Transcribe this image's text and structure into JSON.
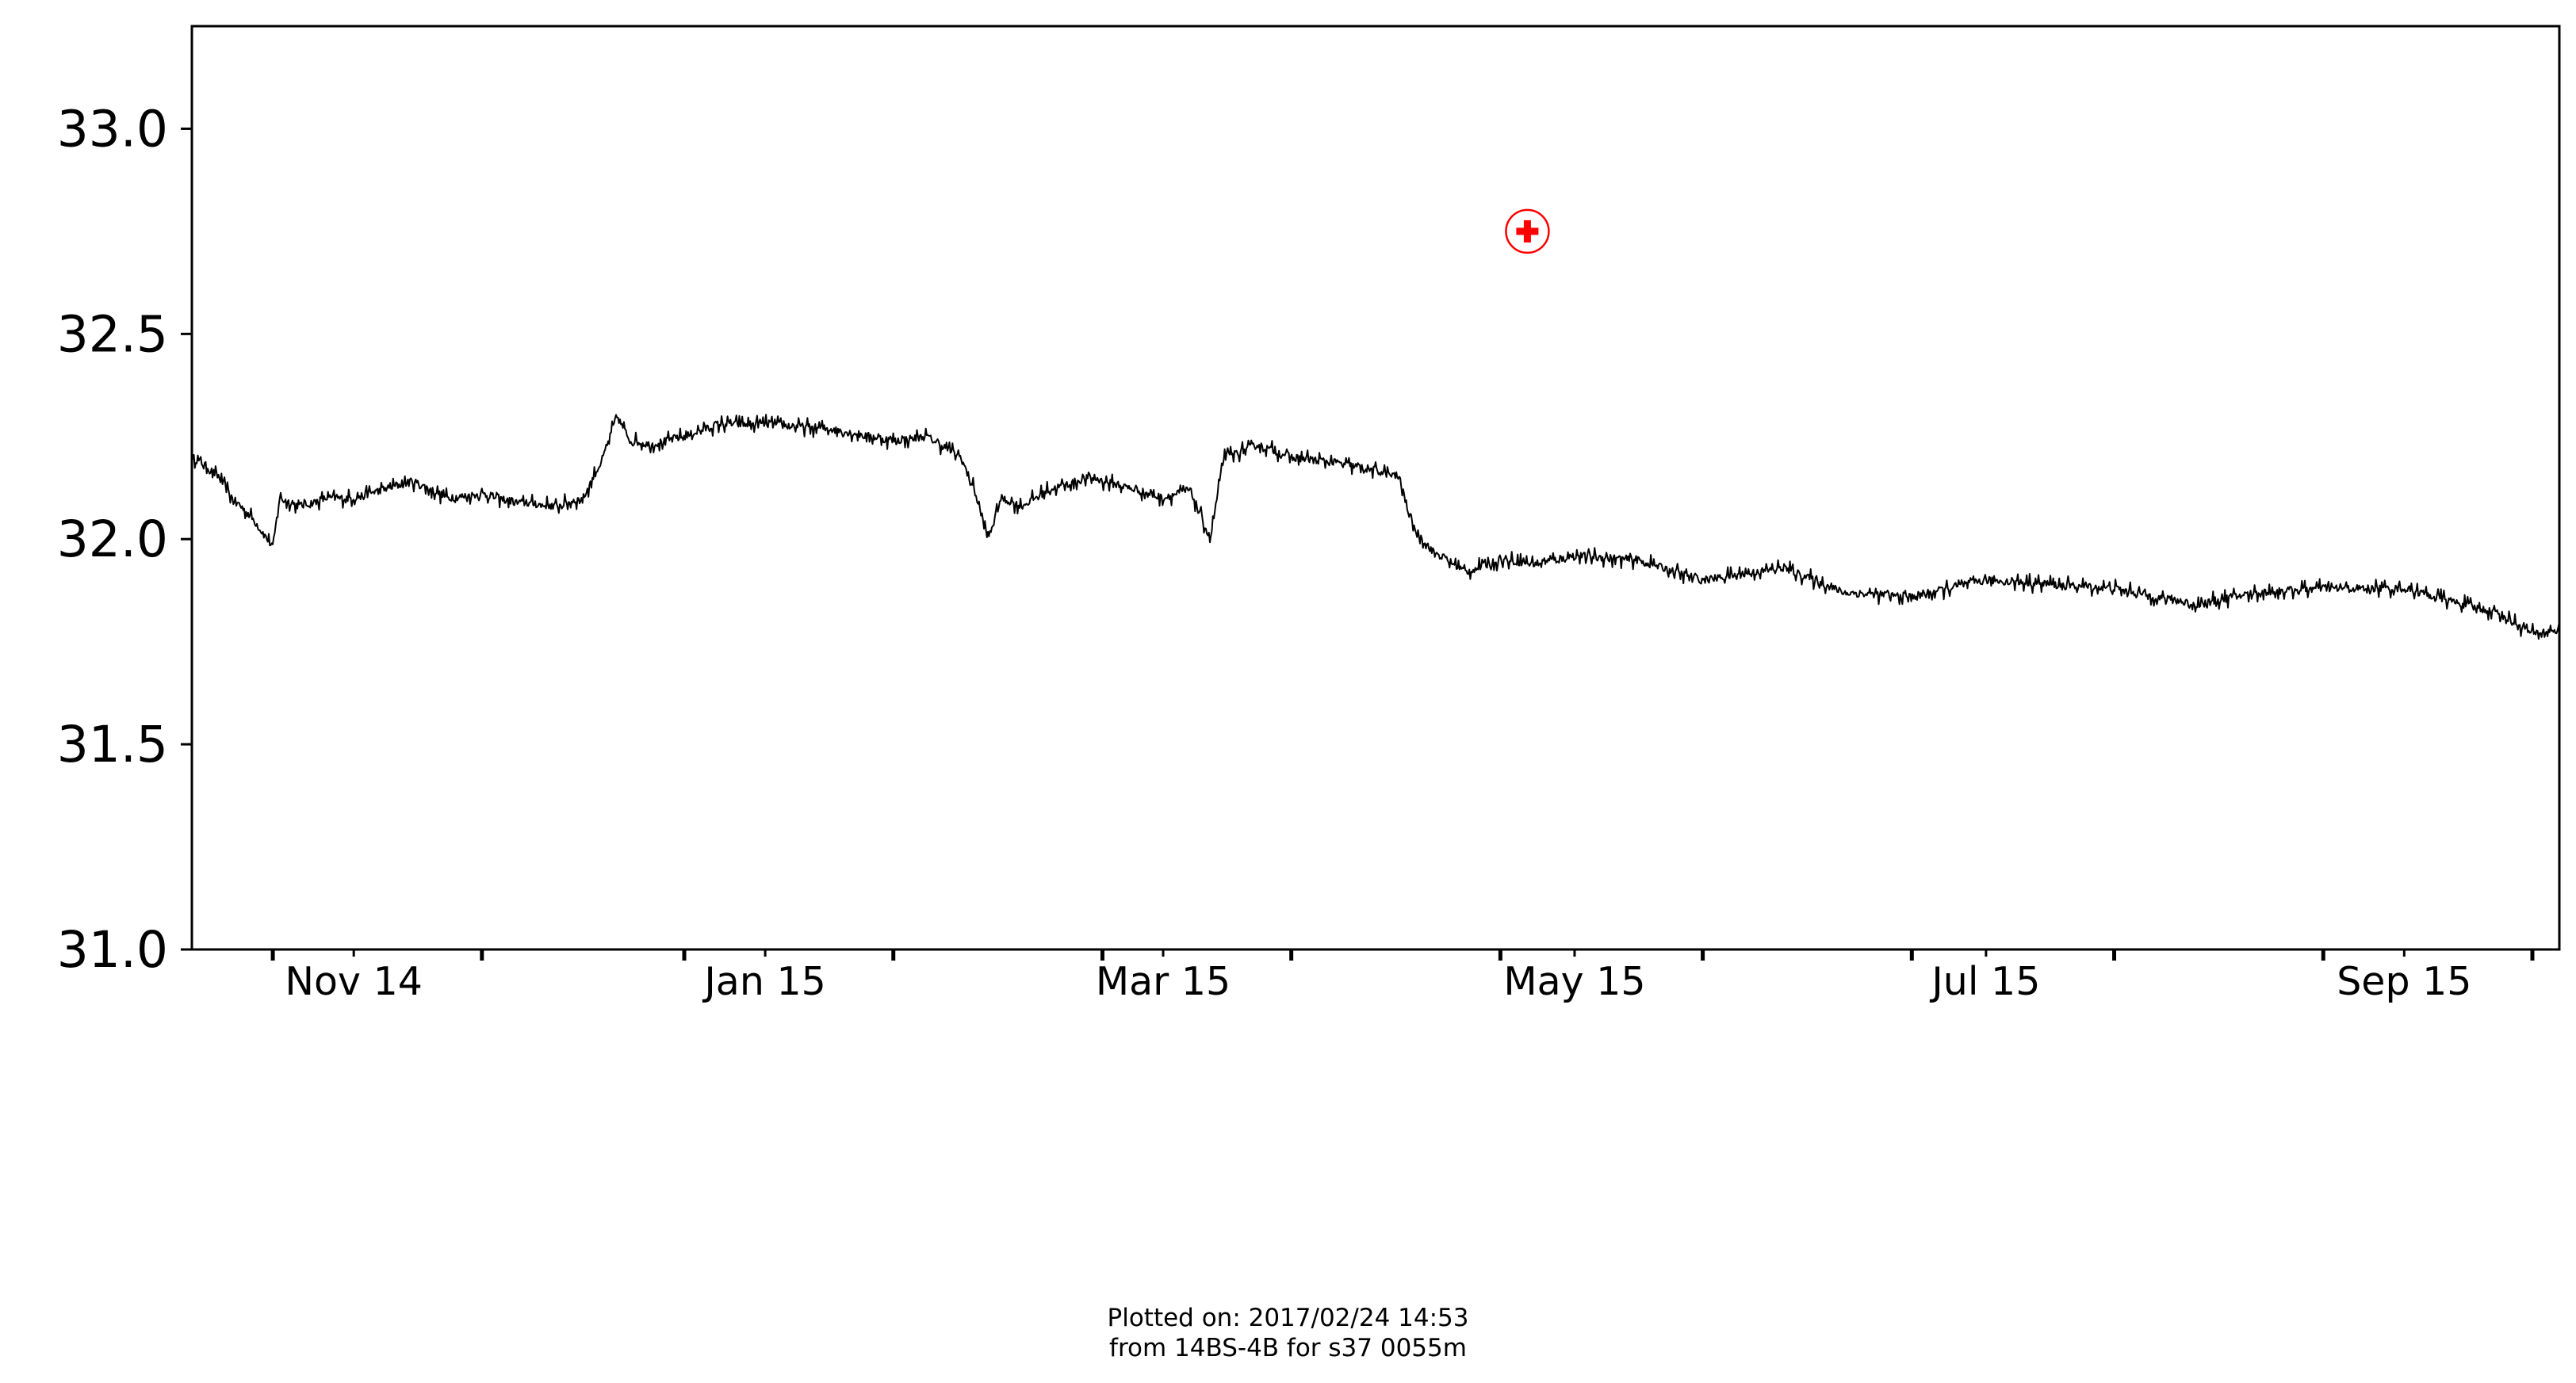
{
  "chart_data": {
    "type": "line",
    "title": "",
    "xlabel": "",
    "ylabel": "",
    "ylim": [
      31.0,
      33.25
    ],
    "xlim": [
      "2014-10-08",
      "2015-09-24"
    ],
    "y_ticks": [
      "31.0",
      "31.5",
      "32.0",
      "32.5",
      "33.0"
    ],
    "x_ticks": [
      {
        "date": "2014-11-01",
        "label": "Nov 14"
      },
      {
        "date": "2015-01-01",
        "label": "Jan 15"
      },
      {
        "date": "2015-03-01",
        "label": "Mar 15"
      },
      {
        "date": "2015-05-01",
        "label": "May 15"
      },
      {
        "date": "2015-07-01",
        "label": "Jul 15"
      },
      {
        "date": "2015-09-01",
        "label": "Sep 15"
      }
    ],
    "minor_x_ticks": [
      "2014-10-20",
      "2014-11-20",
      "2014-12-20",
      "2015-01-20",
      "2015-02-20",
      "2015-03-20",
      "2015-04-20",
      "2015-05-20",
      "2015-06-20",
      "2015-07-20",
      "2015-08-20",
      "2015-09-20"
    ],
    "grid": false,
    "series": [
      {
        "color": "#000000",
        "noise": 0.03,
        "x": [
          "2014-10-08",
          "2014-10-10",
          "2014-10-12",
          "2014-10-14",
          "2014-10-17",
          "2014-10-20",
          "2014-10-21",
          "2014-10-24",
          "2014-10-28",
          "2014-11-01",
          "2014-11-05",
          "2014-11-10",
          "2014-11-15",
          "2014-11-20",
          "2014-11-25",
          "2014-12-01",
          "2014-12-05",
          "2014-12-08",
          "2014-12-10",
          "2014-12-12",
          "2014-12-15",
          "2014-12-20",
          "2014-12-25",
          "2015-01-01",
          "2015-01-10",
          "2015-01-20",
          "2015-01-25",
          "2015-01-30",
          "2015-02-01",
          "2015-02-03",
          "2015-02-05",
          "2015-02-08",
          "2015-02-12",
          "2015-02-18",
          "2015-02-25",
          "2015-03-01",
          "2015-03-05",
          "2015-03-08",
          "2015-03-10",
          "2015-03-12",
          "2015-03-15",
          "2015-03-20",
          "2015-03-25",
          "2015-04-01",
          "2015-04-05",
          "2015-04-07",
          "2015-04-10",
          "2015-04-15",
          "2015-04-20",
          "2015-04-25",
          "2015-05-01",
          "2015-05-10",
          "2015-05-20",
          "2015-06-01",
          "2015-06-10",
          "2015-06-20",
          "2015-07-01",
          "2015-07-10",
          "2015-07-20",
          "2015-08-01",
          "2015-08-10",
          "2015-08-20",
          "2015-09-01",
          "2015-09-10",
          "2015-09-15",
          "2015-09-20",
          "2015-09-24"
        ],
        "y": [
          32.2,
          32.18,
          32.15,
          32.1,
          32.05,
          31.98,
          32.1,
          32.08,
          32.1,
          32.1,
          32.12,
          32.14,
          32.1,
          32.11,
          32.09,
          32.08,
          32.1,
          32.2,
          32.3,
          32.24,
          32.23,
          32.25,
          32.28,
          32.28,
          32.27,
          32.24,
          32.25,
          32.2,
          32.12,
          32.0,
          32.1,
          32.08,
          32.12,
          32.15,
          32.12,
          32.1,
          32.12,
          32.0,
          32.2,
          32.21,
          32.23,
          32.2,
          32.19,
          32.17,
          32.15,
          32.03,
          31.97,
          31.92,
          31.95,
          31.94,
          31.96,
          31.95,
          31.9,
          31.93,
          31.87,
          31.86,
          31.9,
          31.89,
          31.88,
          31.84,
          31.87,
          31.88,
          31.88,
          31.84,
          31.82,
          31.77,
          31.78
        ]
      },
      {
        "type": "marker",
        "marker": "circle-cross",
        "color": "#ff0000",
        "x": [
          "2015-04-24"
        ],
        "y": [
          32.75
        ]
      }
    ]
  },
  "footer": {
    "line1": "Plotted on: 2017/02/24 14:53",
    "line2": " from 14BS-4B for s37 0055m"
  }
}
